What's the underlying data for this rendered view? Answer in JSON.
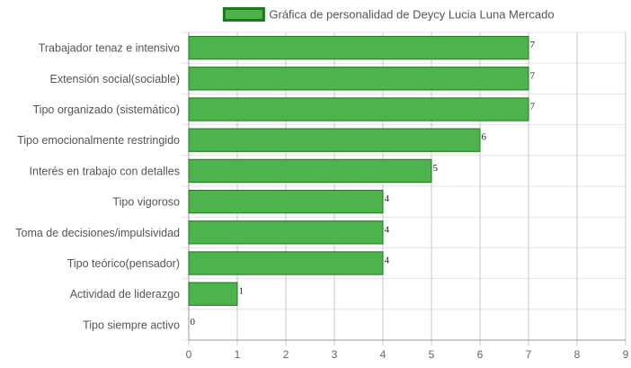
{
  "chart_data": {
    "type": "bar",
    "orientation": "horizontal",
    "title": "",
    "xlabel": "",
    "ylabel": "",
    "categories": [
      "Trabajador tenaz e intensivo",
      "Extensión social(sociable)",
      "Tipo organizado (sistemático)",
      "Tipo emocionalmente restringido",
      "Interés en trabajo con detalles",
      "Tipo vigoroso",
      "Toma de decisiones/impulsividad",
      "Tipo teórico(pensador)",
      "Actividad de liderazgo",
      "Tipo siempre activo"
    ],
    "series": [
      {
        "name": "Gráfica de personalidad de Deycy Lucia Luna Mercado",
        "values": [
          7,
          7,
          7,
          6,
          5,
          4,
          4,
          4,
          1,
          0
        ],
        "color": "#4db34d",
        "border_color": "#1a7a1a"
      }
    ],
    "xlim": [
      0,
      9
    ],
    "x_ticks": [
      "0",
      "1",
      "2",
      "3",
      "4",
      "5",
      "6",
      "7",
      "8",
      "9"
    ],
    "grid": true,
    "legend_position": "top",
    "data_labels": true
  }
}
